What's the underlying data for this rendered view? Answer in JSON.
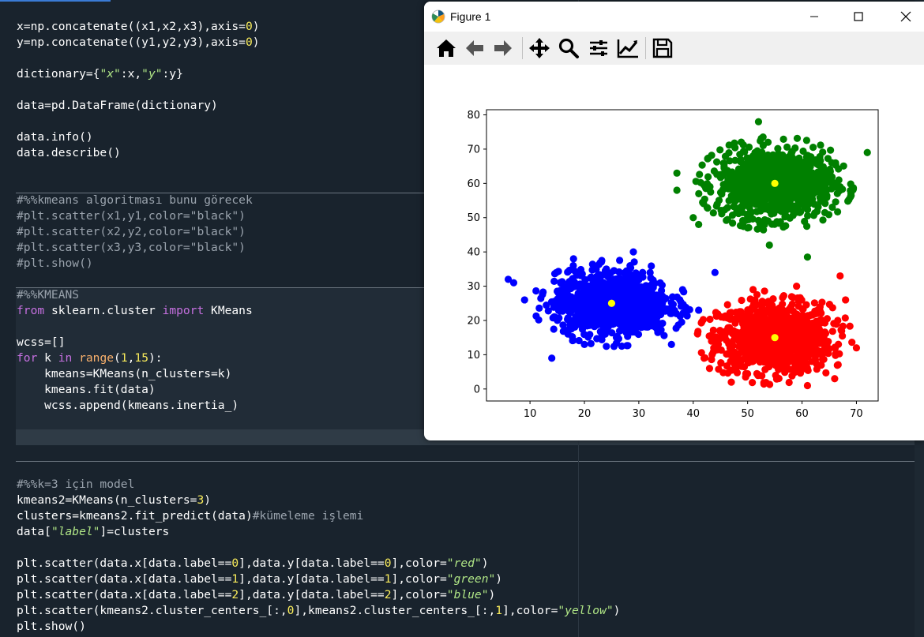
{
  "window": {
    "title": "Figure 1",
    "minimize_icon": "minimize-icon",
    "maximize_icon": "maximize-icon",
    "close_icon": "close-icon"
  },
  "toolbar": {
    "buttons": [
      "home-icon",
      "back-arrow-icon",
      "forward-arrow-icon",
      "pan-icon",
      "zoom-icon",
      "configure-subplots-icon",
      "edit-axes-icon",
      "save-icon"
    ]
  },
  "code": {
    "lines": [
      [
        [
          "x=np.concatenate((x1,x2,x3),axis=",
          ""
        ],
        [
          "0",
          "num"
        ],
        [
          ")",
          ""
        ]
      ],
      [
        [
          "y=np.concatenate((y1,y2,y3),axis=",
          ""
        ],
        [
          "0",
          "num"
        ],
        [
          ")",
          ""
        ]
      ],
      [],
      [
        [
          "dictionary={",
          ""
        ],
        [
          "\"x\"",
          "str"
        ],
        [
          ":x,",
          ""
        ],
        [
          "\"y\"",
          "str"
        ],
        [
          ":y}",
          ""
        ]
      ],
      [],
      [
        [
          "data=pd.DataFrame(dictionary)",
          ""
        ]
      ],
      [],
      [
        [
          "data.info()",
          ""
        ]
      ],
      [
        [
          "data.describe()",
          ""
        ]
      ],
      [],
      [],
      [
        [
          "#%%kmeans algoritması bunu görecek",
          "cm"
        ]
      ],
      [
        [
          "#plt.scatter(x1,y1,color=\"black\")",
          "cm"
        ]
      ],
      [
        [
          "#plt.scatter(x2,y2,color=\"black\")",
          "cm"
        ]
      ],
      [
        [
          "#plt.scatter(x3,y3,color=\"black\")",
          "cm"
        ]
      ],
      [
        [
          "#plt.show()",
          "cm"
        ]
      ],
      [],
      [
        [
          "#%%KMEANS",
          "cm"
        ]
      ],
      [
        [
          "from",
          "kw"
        ],
        [
          " sklearn.cluster ",
          ""
        ],
        [
          "import",
          "kw"
        ],
        [
          " KMeans",
          ""
        ]
      ],
      [],
      [
        [
          "wcss=[]",
          ""
        ]
      ],
      [
        [
          "for",
          "kw"
        ],
        [
          " k ",
          ""
        ],
        [
          "in",
          "kw"
        ],
        [
          " ",
          ""
        ],
        [
          "range",
          "bi"
        ],
        [
          "(",
          ""
        ],
        [
          "1",
          "num"
        ],
        [
          ",",
          ""
        ],
        [
          "15",
          "num"
        ],
        [
          "):",
          ""
        ]
      ],
      [
        [
          "    kmeans=KMeans(n_clusters=k)",
          ""
        ]
      ],
      [
        [
          "    kmeans.fit(data)",
          ""
        ]
      ],
      [
        [
          "    wcss.append(kmeans.inertia_)",
          ""
        ]
      ],
      [],
      [],
      [],
      [],
      [
        [
          "#%%k=3 için model",
          "cm"
        ]
      ],
      [
        [
          "kmeans2=KMeans(n_clusters=",
          ""
        ],
        [
          "3",
          "num"
        ],
        [
          ")",
          ""
        ]
      ],
      [
        [
          "clusters=kmeans2.fit_predict(data)",
          ""
        ],
        [
          "#kümeleme işlemi",
          "cm"
        ]
      ],
      [
        [
          "data[",
          ""
        ],
        [
          "\"label\"",
          "str"
        ],
        [
          "]=clusters",
          ""
        ]
      ],
      [],
      [
        [
          "plt.scatter(data.x[data.label==",
          ""
        ],
        [
          "0",
          "num"
        ],
        [
          "],data.y[data.label==",
          ""
        ],
        [
          "0",
          "num"
        ],
        [
          "],color=",
          ""
        ],
        [
          "\"red\"",
          "str"
        ],
        [
          ")",
          ""
        ]
      ],
      [
        [
          "plt.scatter(data.x[data.label==",
          ""
        ],
        [
          "1",
          "num"
        ],
        [
          "],data.y[data.label==",
          ""
        ],
        [
          "1",
          "num"
        ],
        [
          "],color=",
          ""
        ],
        [
          "\"green\"",
          "str"
        ],
        [
          ")",
          ""
        ]
      ],
      [
        [
          "plt.scatter(data.x[data.label==",
          ""
        ],
        [
          "2",
          "num"
        ],
        [
          "],data.y[data.label==",
          ""
        ],
        [
          "2",
          "num"
        ],
        [
          "],color=",
          ""
        ],
        [
          "\"blue\"",
          "str"
        ],
        [
          ")",
          ""
        ]
      ],
      [
        [
          "plt.scatter(kmeans2.cluster_centers_[:,",
          ""
        ],
        [
          "0",
          "num"
        ],
        [
          "],kmeans2.cluster_centers_[:,",
          ""
        ],
        [
          "1",
          "num"
        ],
        [
          "],color=",
          ""
        ],
        [
          "\"yellow\"",
          "str"
        ],
        [
          ")",
          ""
        ]
      ],
      [
        [
          "plt.show()",
          ""
        ]
      ]
    ]
  },
  "chart_data": {
    "type": "scatter",
    "xlim": [
      2,
      74
    ],
    "ylim": [
      -3.5,
      81.5
    ],
    "xticks": [
      10,
      20,
      30,
      40,
      50,
      60,
      70
    ],
    "yticks": [
      0,
      10,
      20,
      30,
      40,
      50,
      60,
      70,
      80
    ],
    "grid": false,
    "clusters": [
      {
        "color": "#ff0000",
        "center": [
          55,
          15
        ],
        "spread": [
          5.2,
          5.0
        ],
        "count": 1000,
        "outliers": [
          [
            43,
            6
          ],
          [
            47,
            2
          ],
          [
            66,
            3
          ],
          [
            51,
            29
          ],
          [
            59,
            30
          ],
          [
            67,
            33
          ],
          [
            70,
            12
          ],
          [
            68,
            26
          ],
          [
            42,
            9
          ],
          [
            61,
            1
          ]
        ]
      },
      {
        "color": "#008000",
        "center": [
          55,
          60
        ],
        "spread": [
          5.3,
          5.0
        ],
        "count": 1000,
        "outliers": [
          [
            52,
            78
          ],
          [
            54,
            42
          ],
          [
            61,
            38.5
          ],
          [
            72,
            69
          ],
          [
            37,
            63
          ],
          [
            37,
            58
          ],
          [
            40,
            50
          ],
          [
            41,
            48
          ],
          [
            69,
            57
          ],
          [
            50,
            47
          ]
        ]
      },
      {
        "color": "#0000ff",
        "center": [
          25,
          25
        ],
        "spread": [
          5.3,
          4.6
        ],
        "count": 1000,
        "outliers": [
          [
            6,
            32
          ],
          [
            7,
            31
          ],
          [
            9,
            26
          ],
          [
            14,
            9
          ],
          [
            44,
            34
          ],
          [
            36,
            13
          ],
          [
            29,
            40
          ],
          [
            18,
            38
          ],
          [
            20,
            13
          ],
          [
            41,
            23
          ]
        ]
      },
      {
        "color": "#ffff00",
        "center": [
          25,
          25
        ],
        "spread": [
          0,
          0
        ],
        "count": 0,
        "points": [
          [
            55,
            15
          ],
          [
            55,
            60
          ],
          [
            25,
            25
          ]
        ]
      }
    ]
  },
  "colors": {
    "editor_bg": "#19232d",
    "number": "#faed5c",
    "string": "#b0e686",
    "keyword": "#c670e0",
    "comment": "#9aa3ad"
  }
}
